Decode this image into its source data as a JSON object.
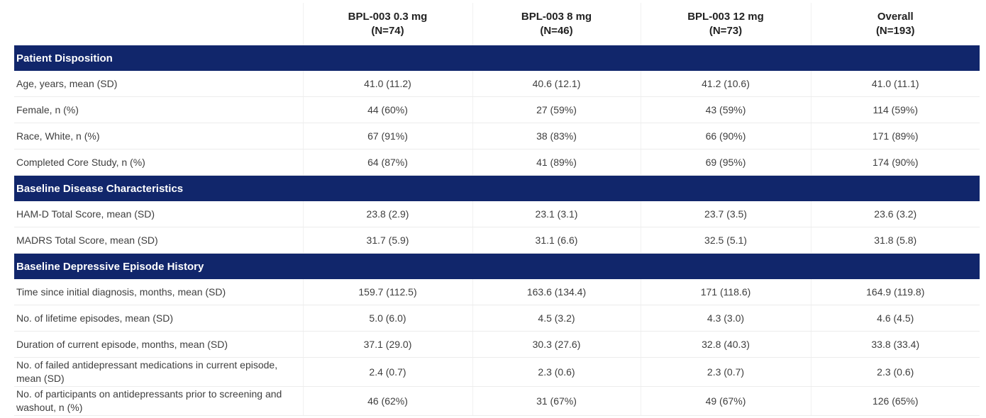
{
  "table": {
    "columns": [
      {
        "name": "BPL-003 0.3 mg",
        "n": "(N=74)"
      },
      {
        "name": "BPL-003 8 mg",
        "n": "(N=46)"
      },
      {
        "name": "BPL-003 12 mg",
        "n": "(N=73)"
      },
      {
        "name": "Overall",
        "n": "(N=193)"
      }
    ],
    "sections": [
      {
        "title": "Patient Disposition",
        "rows": [
          {
            "label": "Age, years, mean (SD)",
            "values": [
              "41.0 (11.2)",
              "40.6 (12.1)",
              "41.2 (10.6)",
              "41.0 (11.1)"
            ]
          },
          {
            "label": "Female, n (%)",
            "values": [
              "44 (60%)",
              "27 (59%)",
              "43 (59%)",
              "114 (59%)"
            ]
          },
          {
            "label": "Race, White, n (%)",
            "values": [
              "67 (91%)",
              "38 (83%)",
              "66 (90%)",
              "171 (89%)"
            ]
          },
          {
            "label": "Completed Core Study, n (%)",
            "values": [
              "64 (87%)",
              "41 (89%)",
              "69 (95%)",
              "174 (90%)"
            ]
          }
        ]
      },
      {
        "title": "Baseline Disease Characteristics",
        "rows": [
          {
            "label": "HAM-D Total Score, mean (SD)",
            "values": [
              "23.8 (2.9)",
              "23.1 (3.1)",
              "23.7 (3.5)",
              "23.6 (3.2)"
            ]
          },
          {
            "label": "MADRS Total Score, mean (SD)",
            "values": [
              "31.7 (5.9)",
              "31.1 (6.6)",
              "32.5 (5.1)",
              "31.8 (5.8)"
            ]
          }
        ]
      },
      {
        "title": "Baseline Depressive Episode History",
        "rows": [
          {
            "label": "Time since initial diagnosis, months, mean (SD)",
            "values": [
              "159.7 (112.5)",
              "163.6 (134.4)",
              "171 (118.6)",
              "164.9 (119.8)"
            ]
          },
          {
            "label": "No. of lifetime episodes, mean (SD)",
            "values": [
              "5.0 (6.0)",
              "4.5 (3.2)",
              "4.3 (3.0)",
              "4.6 (4.5)"
            ]
          },
          {
            "label": "Duration of current episode, months, mean (SD)",
            "values": [
              "37.1 (29.0)",
              "30.3 (27.6)",
              "32.8 (40.3)",
              "33.8 (33.4)"
            ]
          },
          {
            "label": "No. of failed antidepressant medications in current episode, mean (SD)",
            "values": [
              "2.4 (0.7)",
              "2.3 (0.6)",
              "2.3 (0.7)",
              "2.3 (0.6)"
            ]
          },
          {
            "label": "No. of participants on antidepressants prior to screening and washout, n (%)",
            "values": [
              "46 (62%)",
              "31 (67%)",
              "49 (67%)",
              "126 (65%)"
            ]
          }
        ]
      }
    ]
  }
}
